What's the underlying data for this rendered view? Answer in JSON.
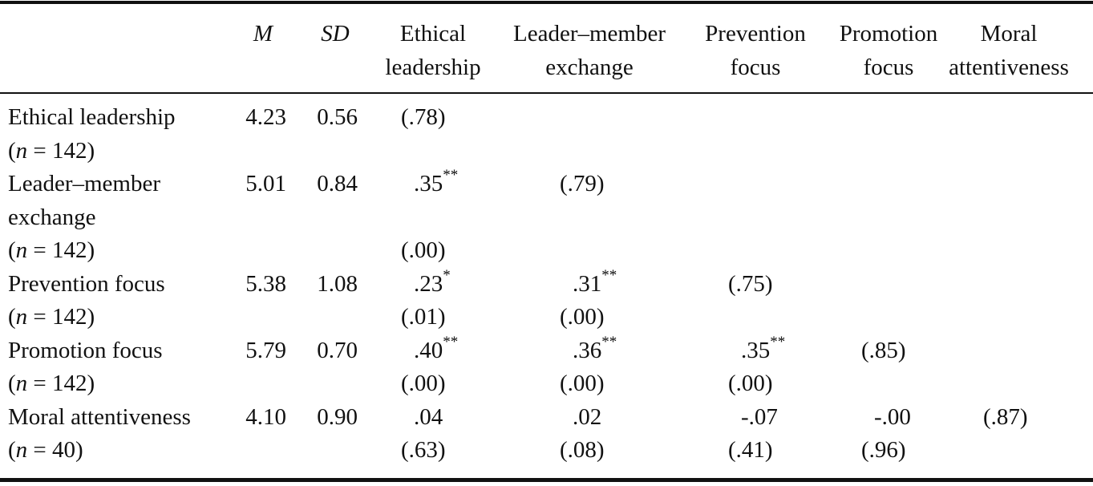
{
  "table": {
    "columns": [
      {
        "key": "m",
        "lines": [
          "M"
        ],
        "italic": true
      },
      {
        "key": "sd",
        "lines": [
          "SD"
        ],
        "italic": true
      },
      {
        "key": "el",
        "lines": [
          "Ethical",
          "leadership"
        ]
      },
      {
        "key": "lmx",
        "lines": [
          "Leader–member",
          "exchange"
        ]
      },
      {
        "key": "prev",
        "lines": [
          "Prevention",
          "focus"
        ]
      },
      {
        "key": "prom",
        "lines": [
          "Promotion",
          "focus"
        ]
      },
      {
        "key": "moral",
        "lines": [
          "Moral",
          "attentiveness"
        ]
      }
    ],
    "rows": [
      {
        "label_lines": [
          "Ethical leadership"
        ],
        "n_label": "n",
        "n_value": " = 142)",
        "m": "4.23",
        "sd": "0.56",
        "cells": {
          "el": {
            "r": "(.78)",
            "sig": "",
            "p": ""
          }
        }
      },
      {
        "label_lines": [
          "Leader–member",
          "exchange"
        ],
        "n_label": "n",
        "n_value": " = 142)",
        "m": "5.01",
        "sd": "0.84",
        "cells": {
          "el": {
            "r": ".35",
            "sig": "**",
            "p": "(.00)"
          },
          "lmx": {
            "r": "(.79)",
            "sig": "",
            "p": ""
          }
        }
      },
      {
        "label_lines": [
          "Prevention focus"
        ],
        "n_label": "n",
        "n_value": " = 142)",
        "m": "5.38",
        "sd": "1.08",
        "cells": {
          "el": {
            "r": ".23",
            "sig": "*",
            "p": "(.01)"
          },
          "lmx": {
            "r": ".31",
            "sig": "**",
            "p": "(.00)"
          },
          "prev": {
            "r": "(.75)",
            "sig": "",
            "p": ""
          }
        }
      },
      {
        "label_lines": [
          "Promotion focus"
        ],
        "n_label": "n",
        "n_value": " = 142)",
        "m": "5.79",
        "sd": "0.70",
        "cells": {
          "el": {
            "r": ".40",
            "sig": "**",
            "p": "(.00)"
          },
          "lmx": {
            "r": ".36",
            "sig": "**",
            "p": "(.00)"
          },
          "prev": {
            "r": ".35",
            "sig": "**",
            "p": "(.00)"
          },
          "prom": {
            "r": "(.85)",
            "sig": "",
            "p": ""
          }
        }
      },
      {
        "label_lines": [
          "Moral attentiveness"
        ],
        "n_label": "n",
        "n_value": " = 40)",
        "m": "4.10",
        "sd": "0.90",
        "cells": {
          "el": {
            "r": ".04",
            "sig": "",
            "p": "(.63)"
          },
          "lmx": {
            "r": ".02",
            "sig": "",
            "p": "(.08)"
          },
          "prev": {
            "r": "-.07",
            "sig": "",
            "p": "(.41)"
          },
          "prom": {
            "r": "-.00",
            "sig": "",
            "p": "(.96)"
          },
          "moral": {
            "r": "(.87)",
            "sig": "",
            "p": ""
          }
        }
      }
    ]
  }
}
